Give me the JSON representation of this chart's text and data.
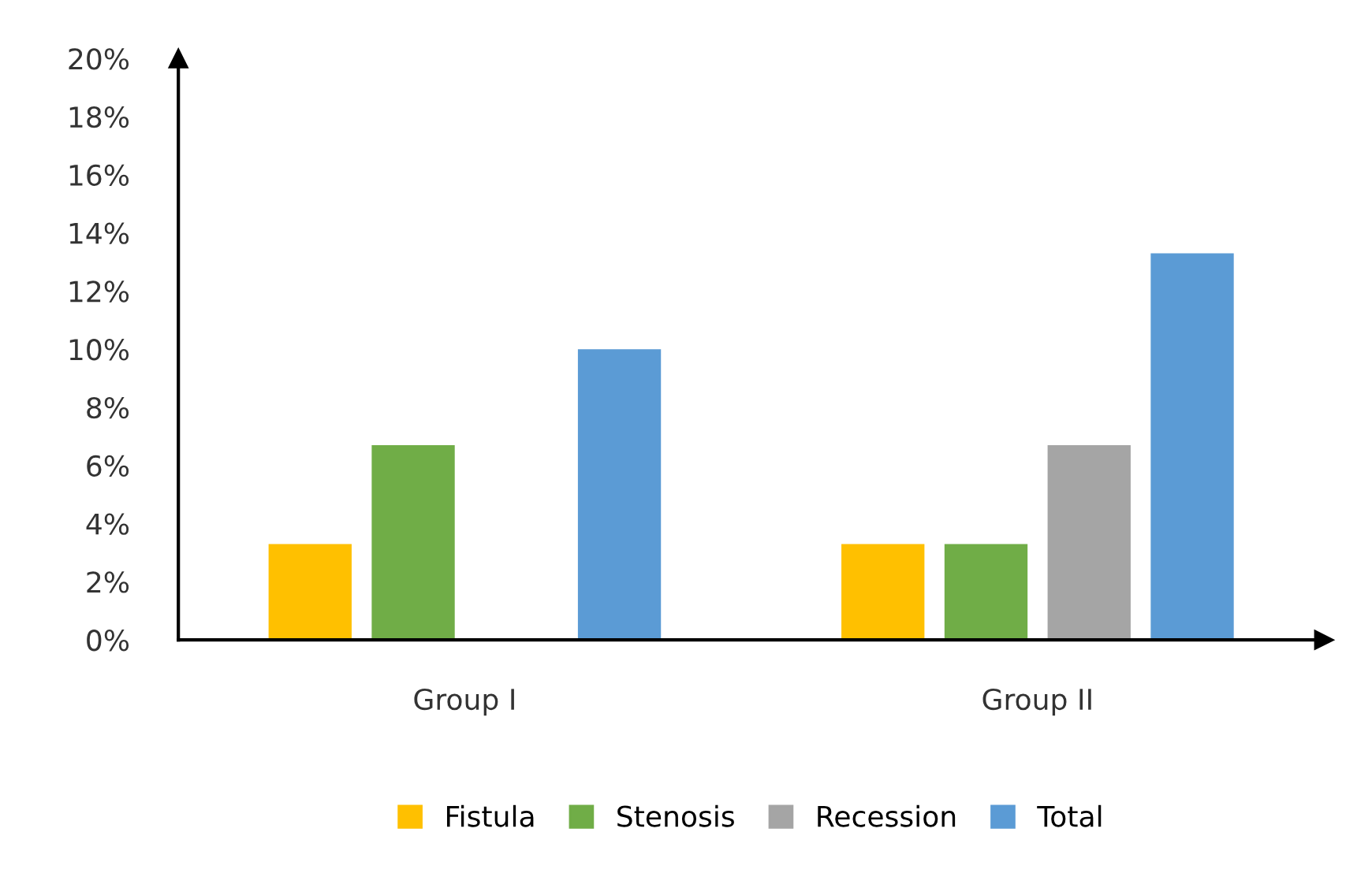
{
  "chart_data": {
    "type": "bar",
    "categories": [
      "Group I",
      "Group II"
    ],
    "series": [
      {
        "name": "Fistula",
        "color": "#ffc000",
        "values": [
          3.3,
          3.3
        ]
      },
      {
        "name": "Stenosis",
        "color": "#70ad47",
        "values": [
          6.7,
          3.3
        ]
      },
      {
        "name": "Recession",
        "color": "#a5a5a5",
        "values": [
          null,
          6.7
        ]
      },
      {
        "name": "Total",
        "color": "#5b9bd5",
        "values": [
          10,
          13.3
        ]
      }
    ],
    "ylim": [
      0,
      20
    ],
    "yticks": [
      {
        "value": 0,
        "label": "0%"
      },
      {
        "value": 2,
        "label": "2%"
      },
      {
        "value": 4,
        "label": "4%"
      },
      {
        "value": 6,
        "label": "6%"
      },
      {
        "value": 8,
        "label": "8%"
      },
      {
        "value": 10,
        "label": "10%"
      },
      {
        "value": 12,
        "label": "12%"
      },
      {
        "value": 14,
        "label": "14%"
      },
      {
        "value": 16,
        "label": "16%"
      },
      {
        "value": 18,
        "label": "18%"
      },
      {
        "value": 20,
        "label": "20%"
      }
    ],
    "grid": false,
    "legend": "bottom"
  }
}
